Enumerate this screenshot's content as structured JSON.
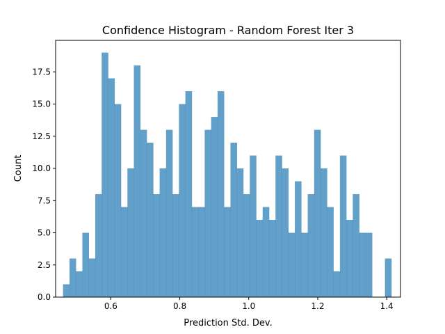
{
  "chart_data": {
    "type": "bar",
    "title": "Confidence Histogram - Random Forest Iter 3",
    "xlabel": "Prediction Std. Dev.",
    "ylabel": "Count",
    "xlim": [
      0.44,
      1.44
    ],
    "ylim": [
      0,
      19.95
    ],
    "xticks": [
      0.6,
      0.8,
      1.0,
      1.2,
      1.4
    ],
    "xtick_labels": [
      "0.6",
      "0.8",
      "1.0",
      "1.2",
      "1.4"
    ],
    "yticks": [
      0.0,
      2.5,
      5.0,
      7.5,
      10.0,
      12.5,
      15.0,
      17.5
    ],
    "ytick_labels": [
      "0.0",
      "2.5",
      "5.0",
      "7.5",
      "10.0",
      "12.5",
      "15.0",
      "17.5"
    ],
    "grid": false,
    "bar_color": "#1f77b4",
    "bar_alpha": 0.7,
    "bin_start": 0.4615,
    "bin_width": 0.01867,
    "values": [
      1,
      3,
      2,
      5,
      3,
      8,
      19,
      17,
      15,
      7,
      10,
      18,
      13,
      12,
      8,
      10,
      13,
      8,
      15,
      16,
      7,
      7,
      13,
      14,
      16,
      7,
      12,
      10,
      8,
      11,
      6,
      7,
      6,
      11,
      10,
      5,
      9,
      5,
      8,
      13,
      10,
      7,
      2,
      11,
      6,
      8,
      5,
      5,
      0,
      0,
      3
    ]
  }
}
